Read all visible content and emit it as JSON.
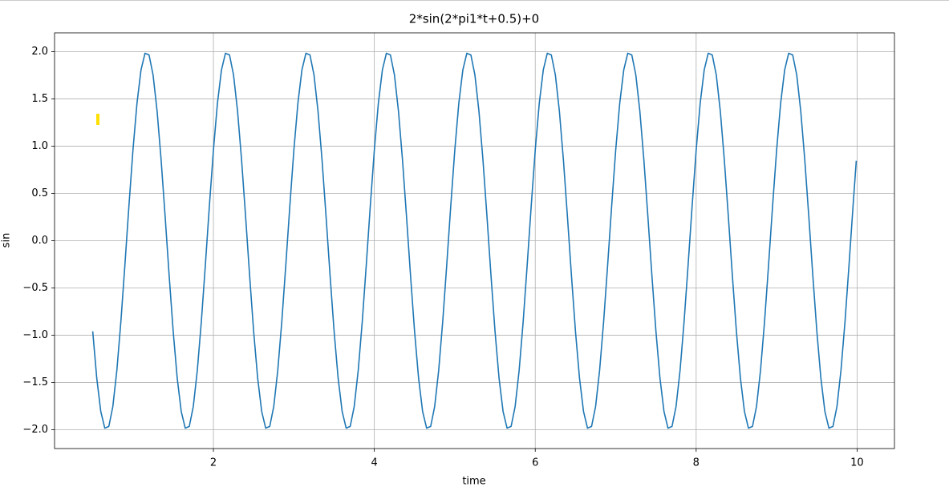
{
  "chart_data": {
    "type": "line",
    "title": "2*sin(2*pi1*t+0.5)+0",
    "x_label": "time",
    "y_label": "sin",
    "x": [
      0.5,
      0.55,
      0.6,
      0.65,
      0.7,
      0.75,
      0.8,
      0.85,
      0.9,
      0.95,
      1.0,
      1.05,
      1.1,
      1.15,
      1.2,
      1.25,
      1.3,
      1.35,
      1.4,
      1.45,
      1.5,
      1.55,
      1.6,
      1.65,
      1.7,
      1.75,
      1.8,
      1.85,
      1.9,
      1.95,
      2.0,
      2.05,
      2.1,
      2.15,
      2.2,
      2.25,
      2.3,
      2.35,
      2.4,
      2.45,
      2.5,
      2.55,
      2.6,
      2.65,
      2.7,
      2.75,
      2.8,
      2.85,
      2.9,
      2.95,
      3.0,
      3.05,
      3.1,
      3.15,
      3.2,
      3.25,
      3.3,
      3.35,
      3.4,
      3.45,
      3.5,
      3.55,
      3.6,
      3.65,
      3.7,
      3.75,
      3.8,
      3.85,
      3.9,
      3.95,
      4.0,
      4.05,
      4.1,
      4.15,
      4.2,
      4.25,
      4.3,
      4.35,
      4.4,
      4.45,
      4.5,
      4.55,
      4.6,
      4.65,
      4.7,
      4.75,
      4.8,
      4.85,
      4.9,
      4.95,
      5.0,
      5.05,
      5.1,
      5.15,
      5.2,
      5.25,
      5.3,
      5.35,
      5.4,
      5.45,
      5.5,
      5.55,
      5.6,
      5.65,
      5.7,
      5.75,
      5.8,
      5.85,
      5.9,
      5.95,
      6.0,
      6.05,
      6.1,
      6.15,
      6.2,
      6.25,
      6.3,
      6.35,
      6.4,
      6.45,
      6.5,
      6.55,
      6.6,
      6.65,
      6.7,
      6.75,
      6.8,
      6.85,
      6.9,
      6.95,
      7.0,
      7.05,
      7.1,
      7.15,
      7.2,
      7.25,
      7.3,
      7.35,
      7.4,
      7.45,
      7.5,
      7.55,
      7.6,
      7.65,
      7.7,
      7.75,
      7.8,
      7.85,
      7.9,
      7.95,
      8.0,
      8.05,
      8.1,
      8.15,
      8.2,
      8.25,
      8.3,
      8.35,
      8.4,
      8.45,
      8.5,
      8.55,
      8.6,
      8.65,
      8.7,
      8.75,
      8.8,
      8.85,
      8.9,
      8.95,
      9.0,
      9.05,
      9.1,
      9.15,
      9.2,
      9.25,
      9.3,
      9.35,
      9.4,
      9.45,
      9.5,
      9.55,
      9.6,
      9.65,
      9.7,
      9.75,
      9.8,
      9.85,
      9.9,
      9.95,
      9.99
    ],
    "series": [
      {
        "name": "sin",
        "color": "#1f77b4",
        "values": [
          -0.959,
          -1.454,
          -1.807,
          -1.984,
          -1.966,
          -1.755,
          -1.372,
          -0.856,
          -0.256,
          0.369,
          0.959,
          1.454,
          1.807,
          1.984,
          1.966,
          1.755,
          1.372,
          0.856,
          0.256,
          -0.369,
          -0.959,
          -1.454,
          -1.807,
          -1.984,
          -1.966,
          -1.755,
          -1.372,
          -0.856,
          -0.256,
          0.369,
          0.959,
          1.454,
          1.807,
          1.984,
          1.966,
          1.755,
          1.372,
          0.856,
          0.256,
          -0.369,
          -0.959,
          -1.454,
          -1.807,
          -1.984,
          -1.966,
          -1.755,
          -1.372,
          -0.856,
          -0.256,
          0.369,
          0.959,
          1.454,
          1.807,
          1.984,
          1.966,
          1.755,
          1.372,
          0.856,
          0.256,
          -0.369,
          -0.959,
          -1.454,
          -1.807,
          -1.984,
          -1.966,
          -1.755,
          -1.372,
          -0.856,
          -0.256,
          0.369,
          0.959,
          1.454,
          1.807,
          1.984,
          1.966,
          1.755,
          1.372,
          0.856,
          0.256,
          -0.369,
          -0.959,
          -1.454,
          -1.807,
          -1.984,
          -1.966,
          -1.755,
          -1.372,
          -0.856,
          -0.256,
          0.369,
          0.959,
          1.454,
          1.807,
          1.984,
          1.966,
          1.755,
          1.372,
          0.856,
          0.256,
          -0.369,
          -0.959,
          -1.454,
          -1.807,
          -1.984,
          -1.966,
          -1.755,
          -1.372,
          -0.856,
          -0.256,
          0.369,
          0.959,
          1.454,
          1.807,
          1.984,
          1.966,
          1.755,
          1.372,
          0.856,
          0.256,
          -0.369,
          -0.959,
          -1.454,
          -1.807,
          -1.984,
          -1.966,
          -1.755,
          -1.372,
          -0.856,
          -0.256,
          0.369,
          0.959,
          1.454,
          1.807,
          1.984,
          1.966,
          1.755,
          1.372,
          0.856,
          0.256,
          -0.369,
          -0.959,
          -1.454,
          -1.807,
          -1.984,
          -1.966,
          -1.755,
          -1.372,
          -0.856,
          -0.256,
          0.369,
          0.959,
          1.454,
          1.807,
          1.984,
          1.966,
          1.755,
          1.372,
          0.856,
          0.256,
          -0.369,
          -0.959,
          -1.454,
          -1.807,
          -1.984,
          -1.966,
          -1.755,
          -1.372,
          -0.856,
          -0.256,
          0.369,
          0.959,
          1.454,
          1.807,
          1.984,
          1.966,
          1.755,
          1.372,
          0.856,
          0.256,
          -0.369,
          -0.959,
          -1.454,
          -1.807,
          -1.984,
          -1.966,
          -1.755,
          -1.372,
          -0.856,
          -0.256,
          0.369,
          0.846
        ]
      }
    ],
    "xlim": [
      0.0255,
      10.4645
    ],
    "xticks": [
      2,
      4,
      6,
      8,
      10
    ],
    "ylim": [
      -2.2,
      2.2
    ],
    "yticks": [
      {
        "value": -2,
        "label": "−2.0"
      },
      {
        "value": -1.5,
        "label": "−1.5"
      },
      {
        "value": -1,
        "label": "−1.0"
      },
      {
        "value": -0.5,
        "label": "−0.5"
      },
      {
        "value": 0,
        "label": "0.0"
      },
      {
        "value": 0.5,
        "label": "0.5"
      },
      {
        "value": 1,
        "label": "1.0"
      },
      {
        "value": 1.5,
        "label": "1.5"
      },
      {
        "value": 2,
        "label": "2.0"
      }
    ],
    "grid": true
  }
}
